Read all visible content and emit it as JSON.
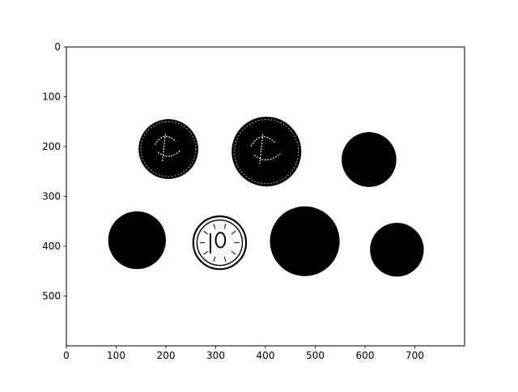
{
  "figure": {
    "background": "#ffffff",
    "foreground": "#000000"
  },
  "image": {
    "description_kind": "thresholded binary photo of coins",
    "extent_x": [
      0,
      800
    ],
    "extent_y": [
      0,
      600
    ],
    "y_axis_inverted": true
  },
  "axes": {
    "x_ticks": [
      {
        "value": 0,
        "label": "0"
      },
      {
        "value": 100,
        "label": "100"
      },
      {
        "value": 200,
        "label": "200"
      },
      {
        "value": 300,
        "label": "300"
      },
      {
        "value": 400,
        "label": "400"
      },
      {
        "value": 500,
        "label": "500"
      },
      {
        "value": 600,
        "label": "600"
      },
      {
        "value": 700,
        "label": "700"
      }
    ],
    "y_ticks": [
      {
        "value": 0,
        "label": "0"
      },
      {
        "value": 100,
        "label": "100"
      },
      {
        "value": 200,
        "label": "200"
      },
      {
        "value": 300,
        "label": "300"
      },
      {
        "value": 400,
        "label": "400"
      },
      {
        "value": 500,
        "label": "500"
      }
    ]
  },
  "coins": [
    {
      "cx": 205,
      "cy": 205,
      "r": 60,
      "kind": "embossed"
    },
    {
      "cx": 402,
      "cy": 210,
      "r": 70,
      "kind": "embossed"
    },
    {
      "cx": 608,
      "cy": 226,
      "r": 55,
      "kind": "solid"
    },
    {
      "cx": 142,
      "cy": 388,
      "r": 58,
      "kind": "solid"
    },
    {
      "cx": 308,
      "cy": 393,
      "r": 53,
      "kind": "outlined"
    },
    {
      "cx": 479,
      "cy": 390,
      "r": 70,
      "kind": "solid"
    },
    {
      "cx": 664,
      "cy": 407,
      "r": 54,
      "kind": "solid"
    }
  ]
}
